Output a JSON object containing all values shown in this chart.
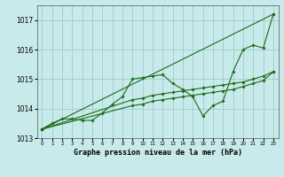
{
  "title": "Graphe pression niveau de la mer (hPa)",
  "bg_color": "#c8eaea",
  "grid_color": "#a0cccc",
  "line_color": "#1a6b1a",
  "xlim": [
    -0.5,
    23.5
  ],
  "ylim": [
    1013.0,
    1017.5
  ],
  "yticks": [
    1013,
    1014,
    1015,
    1016,
    1017
  ],
  "xticks": [
    0,
    1,
    2,
    3,
    4,
    5,
    6,
    7,
    8,
    9,
    10,
    11,
    12,
    13,
    14,
    15,
    16,
    17,
    18,
    19,
    20,
    21,
    22,
    23
  ],
  "series": [
    {
      "x": [
        0,
        1,
        2,
        3,
        4,
        5,
        6,
        7,
        8,
        9,
        10,
        11,
        12,
        13,
        14,
        15,
        16,
        17,
        18,
        19,
        20,
        21,
        22,
        23
      ],
      "y": [
        1013.3,
        1013.5,
        1013.65,
        1013.65,
        1013.6,
        1013.6,
        1013.85,
        1014.15,
        1014.4,
        1015.0,
        1015.05,
        1015.1,
        1015.15,
        1014.85,
        1014.65,
        1014.4,
        1013.75,
        1014.1,
        1014.25,
        1015.25,
        1016.0,
        1016.15,
        1016.05,
        1017.2
      ],
      "has_markers": true
    },
    {
      "x": [
        0,
        23
      ],
      "y": [
        1013.3,
        1017.2
      ],
      "has_markers": true
    },
    {
      "x": [
        0,
        9,
        10,
        11,
        12,
        13,
        14,
        15,
        16,
        17,
        18,
        19,
        20,
        21,
        22,
        23
      ],
      "y": [
        1013.3,
        1014.3,
        1014.35,
        1014.45,
        1014.5,
        1014.55,
        1014.6,
        1014.65,
        1014.7,
        1014.75,
        1014.8,
        1014.85,
        1014.9,
        1015.0,
        1015.1,
        1015.25
      ],
      "has_markers": true
    },
    {
      "x": [
        0,
        9,
        10,
        11,
        12,
        13,
        14,
        15,
        16,
        17,
        18,
        19,
        20,
        21,
        22,
        23
      ],
      "y": [
        1013.3,
        1014.1,
        1014.15,
        1014.25,
        1014.3,
        1014.35,
        1014.4,
        1014.45,
        1014.5,
        1014.55,
        1014.6,
        1014.65,
        1014.75,
        1014.85,
        1014.95,
        1015.25
      ],
      "has_markers": true
    }
  ]
}
